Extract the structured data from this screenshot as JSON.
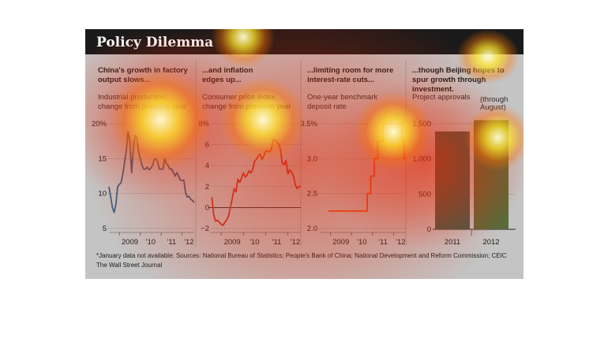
{
  "title": "Policy Dilemma",
  "panels": [
    {
      "heading": [
        "China's growth in factory",
        "output slows..."
      ],
      "sub": [
        "Industrial production,",
        "change from previous year"
      ]
    },
    {
      "heading": [
        "...and inflation",
        "edges up..."
      ],
      "sub": [
        "Consumer price index,",
        "change from previous year"
      ]
    },
    {
      "heading": [
        "...limiting room for more",
        "interest-rate cuts..."
      ],
      "sub": [
        "One-year benchmark",
        "deposit rate"
      ]
    },
    {
      "heading": [
        "...though Beijing hopes to",
        "spur growth through",
        "investment."
      ],
      "sub": [
        "Project approvals"
      ],
      "note": [
        "(through",
        "August)"
      ]
    }
  ],
  "footnote": "*January data not available; Sources: National Bureau of Statistics; People's Bank of China; National Development and Reform Commission; CEIC",
  "credit": "The Wall Street Journal",
  "colors": {
    "header": "#1a1a1a",
    "background": "#c4c4c4",
    "line_blue": "#3f5f7f",
    "line_red": "#c0392b",
    "line_orange": "#e4531b",
    "bar_dark": "#3f5e4a",
    "bar_light": "#5a6a3a"
  },
  "chart_data": [
    {
      "type": "line",
      "title": "China's growth in factory output slows...",
      "ylabel": "Industrial production, change from previous year",
      "ylim": [
        5,
        20
      ],
      "yticks": [
        "20%",
        "15",
        "10",
        "5"
      ],
      "xticks": [
        "2009",
        "'10",
        "'11",
        "'12"
      ],
      "x": [
        "2008-07",
        "2008-08",
        "2008-09",
        "2008-10",
        "2008-11",
        "2008-12",
        "2009-02",
        "2009-03",
        "2009-04",
        "2009-05",
        "2009-06",
        "2009-07",
        "2009-08",
        "2009-09",
        "2009-10",
        "2009-11",
        "2009-12",
        "2010-02",
        "2010-03",
        "2010-04",
        "2010-05",
        "2010-06",
        "2010-07",
        "2010-08",
        "2010-09",
        "2010-10",
        "2010-11",
        "2010-12",
        "2011-02",
        "2011-03",
        "2011-04",
        "2011-05",
        "2011-06",
        "2011-07",
        "2011-08",
        "2011-09",
        "2011-10",
        "2011-11",
        "2011-12",
        "2012-02",
        "2012-03",
        "2012-04",
        "2012-05",
        "2012-06",
        "2012-07",
        "2012-08"
      ],
      "series": [
        {
          "values": [
            11.0,
            9.5,
            8.0,
            7.3,
            8.5,
            11.0,
            11.6,
            12.8,
            14.5,
            16.2,
            18.9,
            17.5,
            13.0,
            16.5,
            18.3,
            18.0,
            16.0,
            14.0,
            13.5,
            13.5,
            13.8,
            13.4,
            13.6,
            14.0,
            14.9,
            15.0,
            14.5,
            13.5,
            13.5,
            15.0,
            14.3,
            14.0,
            13.5,
            13.5,
            13.0,
            12.5,
            13.0,
            12.5,
            11.9,
            11.9,
            10.2,
            9.5,
            9.6,
            9.2,
            9.0,
            8.7
          ]
        }
      ]
    },
    {
      "type": "line",
      "title": "...and inflation edges up...",
      "ylabel": "Consumer price index, change from previous year",
      "ylim": [
        -2,
        8
      ],
      "yticks": [
        "8%",
        "6",
        "4",
        "2",
        "0",
        "−2"
      ],
      "xticks": [
        "2009",
        "'10",
        "'11",
        "'12"
      ],
      "x": [
        "2008-08",
        "2008-09",
        "2008-10",
        "2008-11",
        "2008-12",
        "2009-01",
        "2009-02",
        "2009-03",
        "2009-04",
        "2009-05",
        "2009-06",
        "2009-07",
        "2009-08",
        "2009-09",
        "2009-10",
        "2009-11",
        "2009-12",
        "2010-01",
        "2010-02",
        "2010-03",
        "2010-04",
        "2010-05",
        "2010-06",
        "2010-07",
        "2010-08",
        "2010-09",
        "2010-10",
        "2010-11",
        "2010-12",
        "2011-01",
        "2011-02",
        "2011-03",
        "2011-04",
        "2011-05",
        "2011-06",
        "2011-07",
        "2011-08",
        "2011-09",
        "2011-10",
        "2011-11",
        "2011-12",
        "2012-01",
        "2012-02",
        "2012-03",
        "2012-04",
        "2012-05",
        "2012-06",
        "2012-07",
        "2012-08"
      ],
      "series": [
        {
          "values": [
            1.0,
            -0.7,
            -1.3,
            -1.2,
            -1.4,
            -1.6,
            -1.7,
            -1.4,
            -1.2,
            -0.8,
            0.0,
            0.9,
            1.8,
            1.5,
            2.7,
            2.4,
            2.8,
            3.3,
            2.9,
            3.1,
            3.5,
            3.3,
            3.6,
            4.4,
            4.6,
            4.9,
            5.1,
            4.6,
            4.9,
            5.4,
            5.4,
            5.3,
            5.5,
            6.4,
            6.5,
            6.2,
            6.1,
            5.5,
            4.2,
            4.1,
            4.5,
            3.2,
            3.6,
            3.4,
            3.0,
            2.2,
            1.8,
            2.0,
            2.0
          ]
        }
      ]
    },
    {
      "type": "line",
      "title": "...limiting room for more interest-rate cuts...",
      "ylabel": "One-year benchmark deposit rate",
      "ylim": [
        2.0,
        3.5
      ],
      "yticks": [
        "3.5%",
        "3.0",
        "2.5",
        "2.0"
      ],
      "xticks": [
        "2009",
        "'10",
        "'11",
        "'12"
      ],
      "x": [
        "2008-12",
        "2010-10",
        "2010-12",
        "2011-02",
        "2011-04",
        "2011-07",
        "2012-06",
        "2012-07"
      ],
      "series": [
        {
          "values": [
            2.25,
            2.5,
            2.75,
            3.0,
            3.25,
            3.5,
            3.25,
            3.0
          ]
        }
      ]
    },
    {
      "type": "bar",
      "title": "...though Beijing hopes to spur growth through investment.",
      "ylabel": "Project approvals",
      "ylim": [
        0,
        1500
      ],
      "yticks": [
        "1,500",
        "1,000",
        "500",
        "0"
      ],
      "categories": [
        "2011",
        "2012"
      ],
      "values": [
        1390,
        1550
      ]
    }
  ]
}
